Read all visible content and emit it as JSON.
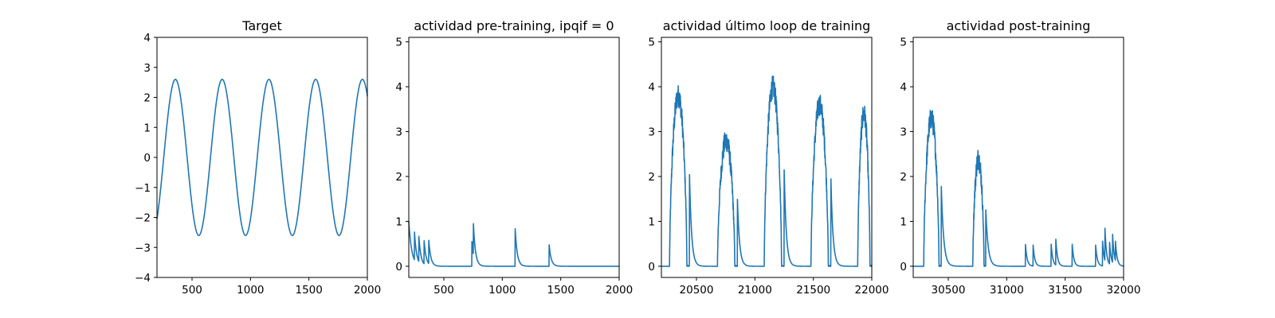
{
  "colors": {
    "series": "#1f77b4",
    "axis": "#000000",
    "background": "#ffffff"
  },
  "chart_data": [
    {
      "type": "line",
      "title": "Target",
      "xlabel": "",
      "ylabel": "",
      "xlim": [
        200,
        2000
      ],
      "ylim": [
        -4,
        4
      ],
      "xticks": [
        500,
        1000,
        1500,
        2000
      ],
      "yticks": [
        -4,
        -3,
        -2,
        -1,
        0,
        1,
        2,
        3,
        4
      ],
      "grid": false,
      "series": [
        {
          "kind": "sine",
          "amplitude": 2.6,
          "period": 400,
          "x_start": 200,
          "x_end": 2000,
          "y_at_x_start": -2.05,
          "peaks_x": [
            350,
            750,
            1150,
            1550,
            1950
          ]
        }
      ]
    },
    {
      "type": "line",
      "title": "actividad pre-training, ipqif = 0",
      "xlabel": "",
      "ylabel": "",
      "xlim": [
        200,
        2000
      ],
      "ylim": [
        -0.25,
        5.1
      ],
      "xticks": [
        500,
        1000,
        1500,
        2000
      ],
      "yticks": [
        0,
        1,
        2,
        3,
        4,
        5
      ],
      "grid": false,
      "series": [
        {
          "kind": "spikes",
          "baseline": 0,
          "x_start": 200,
          "x_end": 2000,
          "start_value": 1.0,
          "decay": 25,
          "spikes": [
            [
              248,
              0.65
            ],
            [
              285,
              0.6
            ],
            [
              330,
              0.55
            ],
            [
              370,
              0.55
            ],
            [
              740,
              0.55
            ],
            [
              752,
              0.72
            ],
            [
              1110,
              0.85
            ],
            [
              1400,
              0.5
            ]
          ]
        }
      ]
    },
    {
      "type": "line",
      "title": "actividad último loop de training",
      "xlabel": "",
      "ylabel": "",
      "xlim": [
        20200,
        22000
      ],
      "ylim": [
        -0.25,
        5.1
      ],
      "xticks": [
        20500,
        21000,
        21500,
        22000
      ],
      "yticks": [
        0,
        1,
        2,
        3,
        4,
        5
      ],
      "grid": false,
      "series": [
        {
          "kind": "bursts",
          "baseline": 0,
          "x_start": 20200,
          "x_end": 22000,
          "decay": 18,
          "bursts": [
            [
              20270,
              20440,
              3.8
            ],
            [
              20680,
              20850,
              2.8
            ],
            [
              21080,
              21250,
              4.0
            ],
            [
              21480,
              21650,
              3.6
            ],
            [
              21880,
              22000,
              3.4
            ]
          ]
        }
      ]
    },
    {
      "type": "line",
      "title": "actividad post-training",
      "xlabel": "",
      "ylabel": "",
      "xlim": [
        30200,
        32000
      ],
      "ylim": [
        -0.25,
        5.1
      ],
      "xticks": [
        30500,
        31000,
        31500,
        32000
      ],
      "yticks": [
        0,
        1,
        2,
        3,
        4,
        5
      ],
      "grid": false,
      "series": [
        {
          "kind": "bursts",
          "baseline": 0,
          "x_start": 30200,
          "x_end": 32000,
          "decay": 20,
          "bursts": [
            [
              30290,
              30440,
              3.3
            ],
            [
              30710,
              30820,
              2.4
            ]
          ],
          "spikes": [
            [
              31160,
              0.5
            ],
            [
              31225,
              0.5
            ],
            [
              31380,
              0.5
            ],
            [
              31420,
              0.58
            ],
            [
              31560,
              0.5
            ],
            [
              31760,
              0.5
            ],
            [
              31820,
              0.55
            ],
            [
              31840,
              0.75
            ],
            [
              31880,
              0.5
            ],
            [
              31905,
              0.68
            ],
            [
              31930,
              0.45
            ]
          ]
        }
      ]
    }
  ]
}
